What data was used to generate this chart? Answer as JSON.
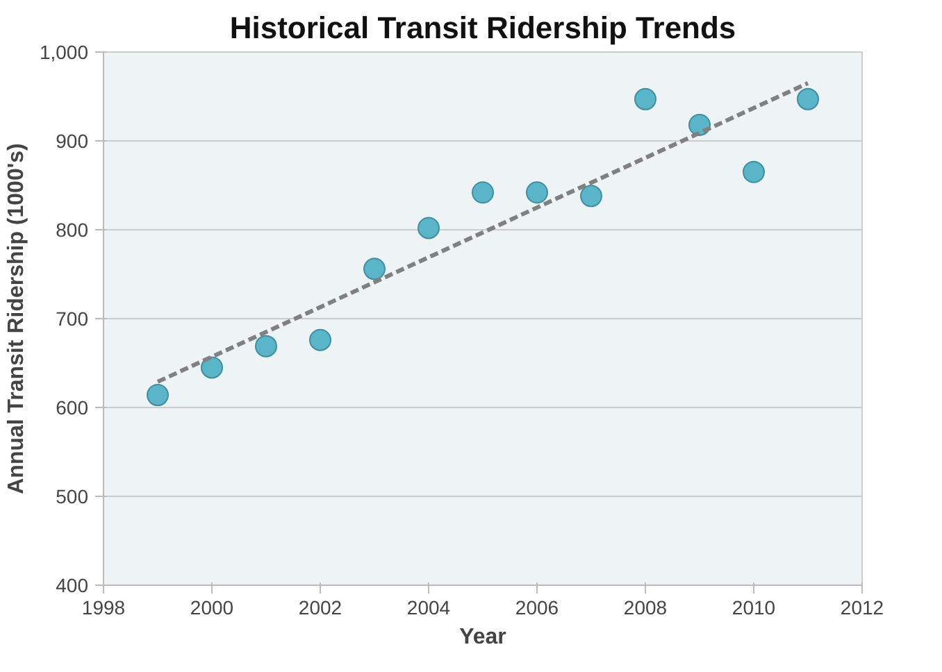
{
  "chart_data": {
    "type": "scatter",
    "title": "Historical Transit Ridership Trends",
    "xlabel": "Year",
    "ylabel": "Annual Transit Ridership (1000's)",
    "x": [
      1999,
      2000,
      2001,
      2002,
      2003,
      2004,
      2005,
      2006,
      2007,
      2008,
      2009,
      2010,
      2011
    ],
    "series": [
      {
        "color": "#5bb5c8",
        "marker": "circle",
        "values": [
          614,
          645,
          669,
          676,
          756,
          802,
          842,
          842,
          838,
          947,
          918,
          865,
          947
        ]
      },
      {
        "type": "line",
        "color": "#808080",
        "line_style": "dashed",
        "marker": "none",
        "x": [
          1999,
          2011
        ],
        "values": [
          629,
          965
        ]
      }
    ],
    "xlim": [
      1998,
      2012
    ],
    "xticks": [
      1998,
      2000,
      2002,
      2004,
      2006,
      2008,
      2010,
      2012
    ],
    "ylim": [
      400,
      1000
    ],
    "yticks": [
      400,
      500,
      600,
      700,
      800,
      900,
      {
        "value": 1000,
        "label": "1,000"
      }
    ],
    "grid": "y"
  }
}
